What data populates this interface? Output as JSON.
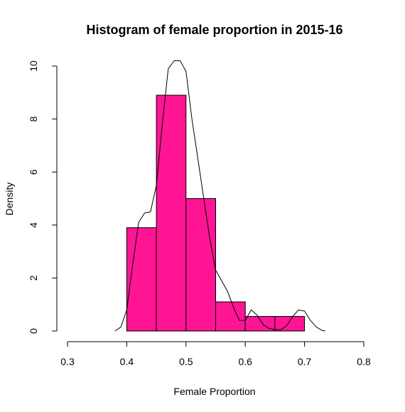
{
  "chart_data": {
    "type": "bar",
    "title": "Histogram of female proportion in 2015-16",
    "xlabel": "Female Proportion",
    "ylabel": "Density",
    "xlim": [
      0.3,
      0.8
    ],
    "ylim": [
      0,
      10
    ],
    "x_ticks": [
      "0.3",
      "0.4",
      "0.5",
      "0.6",
      "0.7",
      "0.8"
    ],
    "y_ticks": [
      "0",
      "2",
      "4",
      "6",
      "8",
      "10"
    ],
    "grid": false,
    "bins": [
      {
        "start": 0.4,
        "end": 0.45,
        "density": 3.9
      },
      {
        "start": 0.45,
        "end": 0.5,
        "density": 8.9
      },
      {
        "start": 0.5,
        "end": 0.55,
        "density": 5.0
      },
      {
        "start": 0.55,
        "end": 0.6,
        "density": 1.1
      },
      {
        "start": 0.6,
        "end": 0.65,
        "density": 0.55
      },
      {
        "start": 0.65,
        "end": 0.7,
        "density": 0.55
      }
    ],
    "density_curve": [
      [
        0.38,
        0.0
      ],
      [
        0.39,
        0.15
      ],
      [
        0.4,
        0.8
      ],
      [
        0.41,
        2.5
      ],
      [
        0.42,
        4.1
      ],
      [
        0.43,
        4.45
      ],
      [
        0.44,
        4.5
      ],
      [
        0.45,
        5.5
      ],
      [
        0.46,
        7.8
      ],
      [
        0.47,
        9.9
      ],
      [
        0.48,
        10.2
      ],
      [
        0.49,
        10.2
      ],
      [
        0.5,
        9.8
      ],
      [
        0.51,
        8.0
      ],
      [
        0.52,
        6.5
      ],
      [
        0.53,
        5.0
      ],
      [
        0.54,
        3.5
      ],
      [
        0.55,
        2.3
      ],
      [
        0.56,
        1.9
      ],
      [
        0.57,
        1.5
      ],
      [
        0.58,
        0.9
      ],
      [
        0.59,
        0.4
      ],
      [
        0.6,
        0.4
      ],
      [
        0.61,
        0.8
      ],
      [
        0.62,
        0.6
      ],
      [
        0.63,
        0.25
      ],
      [
        0.64,
        0.1
      ],
      [
        0.65,
        0.05
      ],
      [
        0.66,
        0.05
      ],
      [
        0.67,
        0.2
      ],
      [
        0.68,
        0.55
      ],
      [
        0.69,
        0.8
      ],
      [
        0.7,
        0.75
      ],
      [
        0.71,
        0.4
      ],
      [
        0.72,
        0.15
      ],
      [
        0.73,
        0.02
      ],
      [
        0.735,
        0.0
      ]
    ],
    "bar_color": "#FF1493",
    "bar_stroke": "#000000",
    "curve_color": "#000000"
  }
}
